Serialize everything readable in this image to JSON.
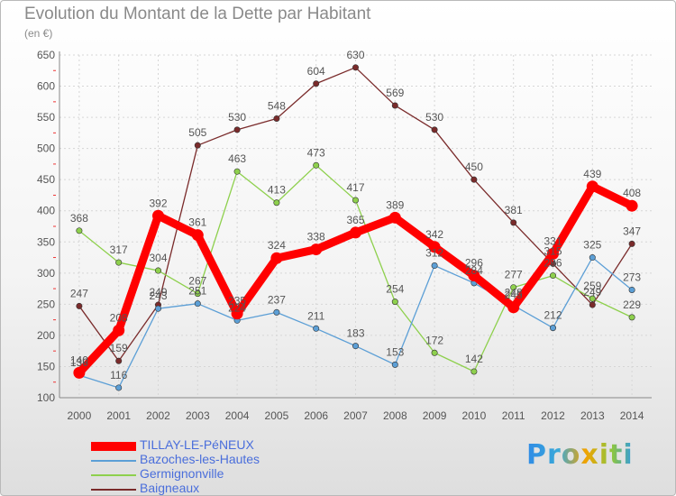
{
  "title": "Evolution du Montant de la Dette par Habitant",
  "subtitle": "(en €)",
  "logo_text": "Proxiti",
  "chart_data": {
    "type": "line",
    "x": [
      2000,
      2001,
      2002,
      2003,
      2004,
      2005,
      2006,
      2007,
      2008,
      2009,
      2010,
      2011,
      2012,
      2013,
      2014
    ],
    "ylim": [
      100,
      650
    ],
    "yticks": [
      100,
      150,
      200,
      250,
      300,
      350,
      400,
      450,
      500,
      550,
      600,
      650
    ],
    "grid": true,
    "legend_position": "bottom-left",
    "series": [
      {
        "name": "TILLAY-LE-PéNEUX",
        "color": "#ff0000",
        "values": [
          140,
          208,
          392,
          361,
          235,
          324,
          338,
          365,
          389,
          342,
          296,
          245,
          331,
          439,
          408
        ],
        "emphasis": true
      },
      {
        "name": "Bazoches-les-Hautes",
        "color": "#5c9fd6",
        "values": [
          136,
          116,
          243,
          251,
          224,
          237,
          211,
          183,
          153,
          312,
          284,
          248,
          212,
          325,
          273
        ]
      },
      {
        "name": "Germignonville",
        "color": "#8ed04d",
        "values": [
          368,
          317,
          304,
          267,
          463,
          413,
          473,
          417,
          254,
          172,
          142,
          277,
          296,
          259,
          229
        ]
      },
      {
        "name": "Baigneaux",
        "color": "#7a2b2b",
        "values": [
          247,
          159,
          249,
          505,
          530,
          548,
          604,
          630,
          569,
          530,
          450,
          381,
          315,
          249,
          347
        ]
      }
    ]
  }
}
